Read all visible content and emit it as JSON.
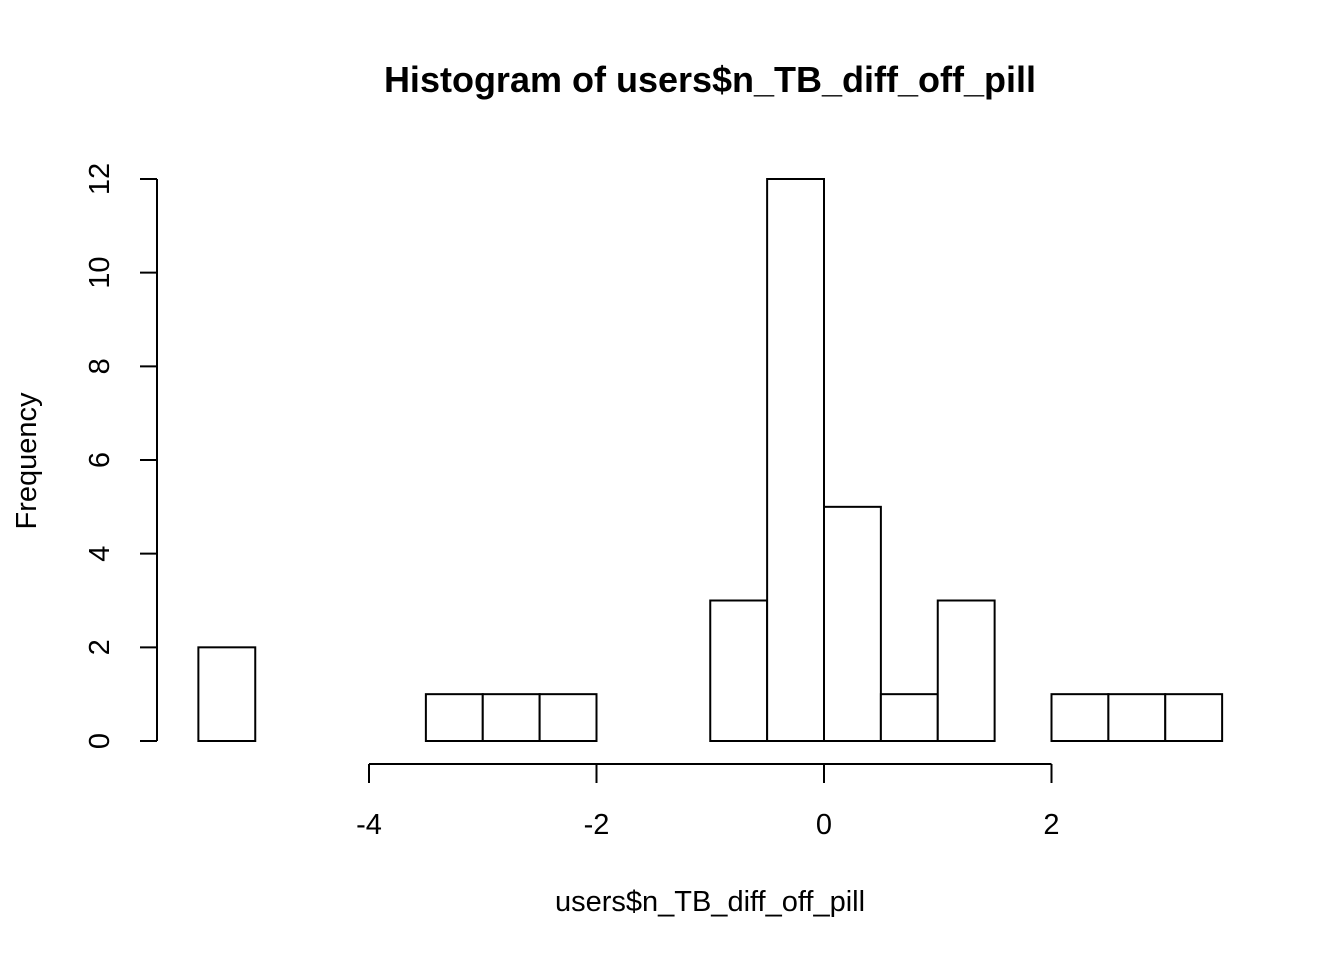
{
  "chart_data": {
    "type": "bar",
    "subtype": "histogram",
    "title": "Histogram of users$n_TB_diff_off_pill",
    "xlabel": "users$n_TB_diff_off_pill",
    "ylabel": "Frequency",
    "bins": [
      {
        "x0": -5.5,
        "x1": -5.0,
        "count": 2
      },
      {
        "x0": -5.0,
        "x1": -4.5,
        "count": 0
      },
      {
        "x0": -4.5,
        "x1": -4.0,
        "count": 0
      },
      {
        "x0": -4.0,
        "x1": -3.5,
        "count": 0
      },
      {
        "x0": -3.5,
        "x1": -3.0,
        "count": 1
      },
      {
        "x0": -3.0,
        "x1": -2.5,
        "count": 1
      },
      {
        "x0": -2.5,
        "x1": -2.0,
        "count": 1
      },
      {
        "x0": -2.0,
        "x1": -1.5,
        "count": 0
      },
      {
        "x0": -1.5,
        "x1": -1.0,
        "count": 0
      },
      {
        "x0": -1.0,
        "x1": -0.5,
        "count": 3
      },
      {
        "x0": -0.5,
        "x1": 0.0,
        "count": 12
      },
      {
        "x0": 0.0,
        "x1": 0.5,
        "count": 5
      },
      {
        "x0": 0.5,
        "x1": 1.0,
        "count": 1
      },
      {
        "x0": 1.0,
        "x1": 1.5,
        "count": 3
      },
      {
        "x0": 1.5,
        "x1": 2.0,
        "count": 0
      },
      {
        "x0": 2.0,
        "x1": 2.5,
        "count": 1
      },
      {
        "x0": 2.5,
        "x1": 3.0,
        "count": 1
      },
      {
        "x0": 3.0,
        "x1": 3.5,
        "count": 1
      }
    ],
    "xticks": [
      -4,
      -2,
      0,
      2
    ],
    "xtick_labels": [
      "-4",
      "-2",
      "0",
      "2"
    ],
    "yticks": [
      0,
      2,
      4,
      6,
      8,
      10,
      12
    ],
    "ytick_labels": [
      "0",
      "2",
      "4",
      "6",
      "8",
      "10",
      "12"
    ],
    "xlim": [
      -5.5,
      3.5
    ],
    "ylim": [
      0,
      12
    ],
    "grid": false,
    "legend": "none",
    "colors": {
      "bar_fill": "#ffffff",
      "bar_stroke": "#000000"
    }
  }
}
